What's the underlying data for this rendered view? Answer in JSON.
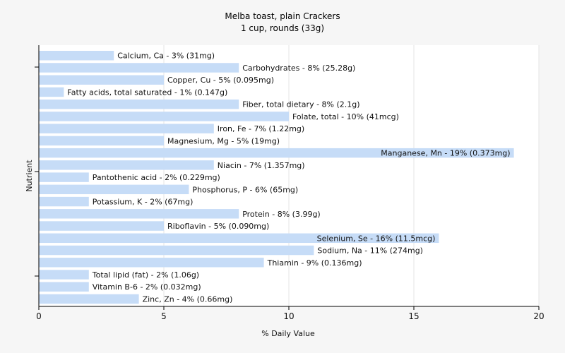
{
  "chart_data": {
    "type": "bar",
    "orientation": "horizontal",
    "title": "Melba toast, plain Crackers",
    "subtitle": "1 cup, rounds (33g)",
    "xlabel": "% Daily Value",
    "ylabel": "Nutrient",
    "xlim": [
      0,
      20
    ],
    "xticks": [
      0,
      5,
      10,
      15,
      20
    ],
    "grid": true,
    "bar_color": "#c6dcf7",
    "categories": [
      "Calcium, Ca",
      "Carbohydrates",
      "Copper, Cu",
      "Fatty acids, total saturated",
      "Fiber, total dietary",
      "Folate, total",
      "Iron, Fe",
      "Magnesium, Mg",
      "Manganese, Mn",
      "Niacin",
      "Pantothenic acid",
      "Phosphorus, P",
      "Potassium, K",
      "Protein",
      "Riboflavin",
      "Selenium, Se",
      "Sodium, Na",
      "Thiamin",
      "Total lipid (fat)",
      "Vitamin B-6",
      "Zinc, Zn"
    ],
    "values": [
      3,
      8,
      5,
      1,
      8,
      10,
      7,
      5,
      19,
      7,
      2,
      6,
      2,
      8,
      5,
      16,
      11,
      9,
      2,
      2,
      4
    ],
    "labels": [
      "Calcium, Ca - 3% (31mg)",
      "Carbohydrates - 8% (25.28g)",
      "Copper, Cu - 5% (0.095mg)",
      "Fatty acids, total saturated - 1% (0.147g)",
      "Fiber, total dietary - 8% (2.1g)",
      "Folate, total - 10% (41mcg)",
      "Iron, Fe - 7% (1.22mg)",
      "Magnesium, Mg - 5% (19mg)",
      "Manganese, Mn - 19% (0.373mg)",
      "Niacin - 7% (1.357mg)",
      "Pantothenic acid - 2% (0.229mg)",
      "Phosphorus, P - 6% (65mg)",
      "Potassium, K - 2% (67mg)",
      "Protein - 8% (3.99g)",
      "Riboflavin - 5% (0.090mg)",
      "Selenium, Se - 16% (11.5mcg)",
      "Sodium, Na - 11% (274mg)",
      "Thiamin - 9% (0.136mg)",
      "Total lipid (fat) - 2% (1.06g)",
      "Vitamin B-6 - 2% (0.032mg)",
      "Zinc, Zn - 4% (0.66mg)"
    ]
  }
}
